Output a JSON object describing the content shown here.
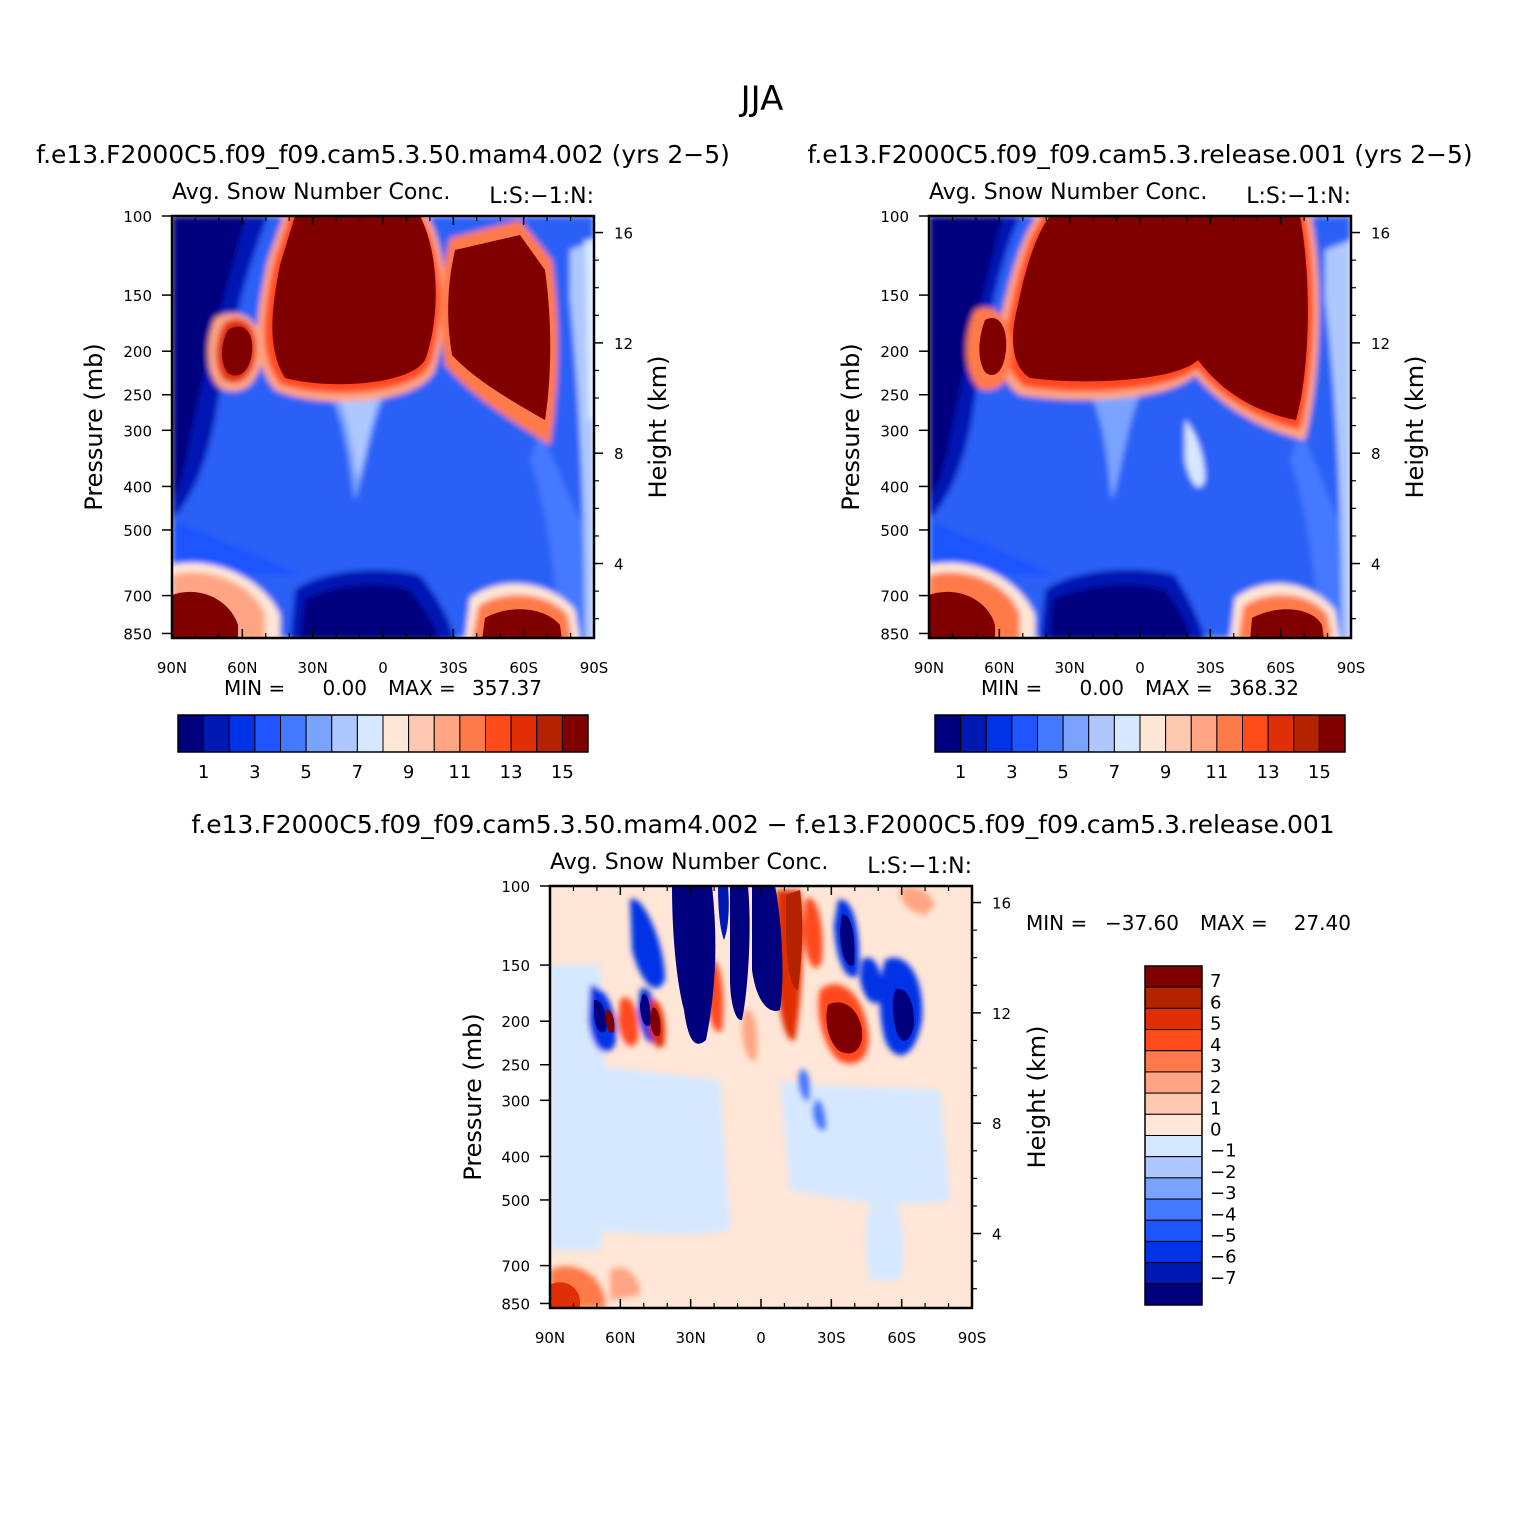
{
  "title": "JJA",
  "chart_data": [
    {
      "type": "heatmap",
      "case_title": "f.e13.F2000C5.f09_f09.cam5.3.50.mam4.002 (yrs 2−5)",
      "variable_label": "Avg. Snow Number Conc.",
      "left_subtitle": "L:S:−1:N:",
      "xlabel": "",
      "ylabel": "Pressure (mb)",
      "y2label": "Height (km)",
      "x_ticks": [
        "90N",
        "60N",
        "30N",
        "0",
        "30S",
        "60S",
        "90S"
      ],
      "y_ticks": [
        "100",
        "150",
        "200",
        "250",
        "300",
        "400",
        "500",
        "700",
        "850"
      ],
      "y_tick_values": [
        100,
        150,
        200,
        250,
        300,
        400,
        500,
        700,
        850
      ],
      "height_ticks": [
        "16",
        "12",
        "8",
        "4"
      ],
      "height_tick_values": [
        16,
        12,
        8,
        4
      ],
      "min_label": "MIN =",
      "min_value": "0.00",
      "max_label": "MAX =",
      "max_value": "357.37",
      "colorbar_labels": [
        "1",
        "3",
        "5",
        "7",
        "9",
        "11",
        "13",
        "15"
      ]
    },
    {
      "type": "heatmap",
      "case_title": "f.e13.F2000C5.f09_f09.cam5.3.release.001 (yrs 2−5)",
      "variable_label": "Avg. Snow Number Conc.",
      "left_subtitle": "L:S:−1:N:",
      "xlabel": "",
      "ylabel": "Pressure (mb)",
      "y2label": "Height (km)",
      "x_ticks": [
        "90N",
        "60N",
        "30N",
        "0",
        "30S",
        "60S",
        "90S"
      ],
      "y_ticks": [
        "100",
        "150",
        "200",
        "250",
        "300",
        "400",
        "500",
        "700",
        "850"
      ],
      "y_tick_values": [
        100,
        150,
        200,
        250,
        300,
        400,
        500,
        700,
        850
      ],
      "height_ticks": [
        "16",
        "12",
        "8",
        "4"
      ],
      "height_tick_values": [
        16,
        12,
        8,
        4
      ],
      "min_label": "MIN =",
      "min_value": "0.00",
      "max_label": "MAX =",
      "max_value": "368.32",
      "colorbar_labels": [
        "1",
        "3",
        "5",
        "7",
        "9",
        "11",
        "13",
        "15"
      ]
    },
    {
      "type": "heatmap",
      "case_title": "f.e13.F2000C5.f09_f09.cam5.3.50.mam4.002 − f.e13.F2000C5.f09_f09.cam5.3.release.001",
      "variable_label": "Avg. Snow Number Conc.",
      "left_subtitle": "L:S:−1:N:",
      "xlabel": "",
      "ylabel": "Pressure (mb)",
      "y2label": "Height (km)",
      "x_ticks": [
        "90N",
        "60N",
        "30N",
        "0",
        "30S",
        "60S",
        "90S"
      ],
      "y_ticks": [
        "100",
        "150",
        "200",
        "250",
        "300",
        "400",
        "500",
        "700",
        "850"
      ],
      "y_tick_values": [
        100,
        150,
        200,
        250,
        300,
        400,
        500,
        700,
        850
      ],
      "height_ticks": [
        "16",
        "12",
        "8",
        "4"
      ],
      "height_tick_values": [
        16,
        12,
        8,
        4
      ],
      "min_label": "MIN =",
      "min_value": "−37.60",
      "max_label": "MAX =",
      "max_value": "27.40",
      "colorbar_labels": [
        "7",
        "6",
        "5",
        "4",
        "3",
        "2",
        "1",
        "0",
        "−1",
        "−2",
        "−3",
        "−4",
        "−5",
        "−6",
        "−7"
      ]
    }
  ],
  "colors": {
    "abs_scale": [
      "#00007f",
      "#0019b3",
      "#0033e6",
      "#1f55ff",
      "#4479ff",
      "#7aa3ff",
      "#aec8ff",
      "#d6e8ff",
      "#ffe6d6",
      "#ffc8b0",
      "#ffa583",
      "#ff7a4a",
      "#ff4a1a",
      "#e02e06",
      "#b52200",
      "#800000"
    ],
    "diff_scale": [
      "#800000",
      "#b52200",
      "#e02e06",
      "#ff4a1a",
      "#ff7a4a",
      "#ffa583",
      "#ffc8b0",
      "#ffe6d6",
      "#d6e8ff",
      "#aec8ff",
      "#7aa3ff",
      "#4479ff",
      "#1f55ff",
      "#0033e6",
      "#0019b3",
      "#00007f"
    ]
  }
}
